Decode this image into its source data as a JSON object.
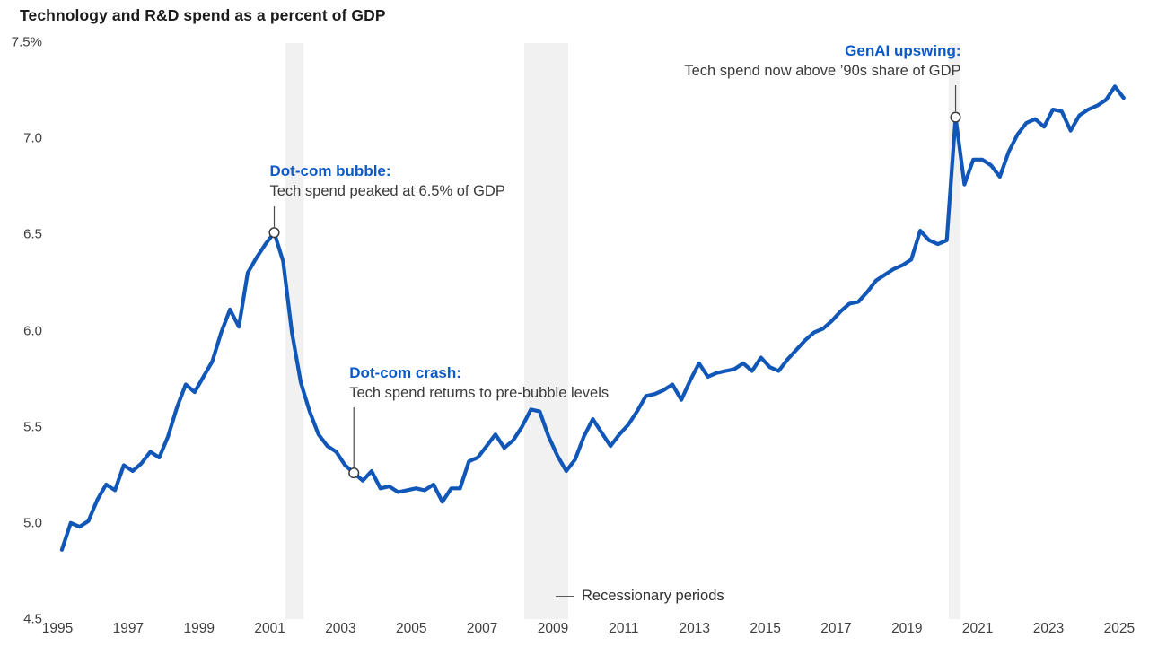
{
  "title": "Technology and R&D spend as a percent of GDP",
  "colors": {
    "line": "#1057b8",
    "annotation_title": "#0c59c8",
    "recession_band": "#f1f1f1",
    "marker_stroke": "#3a3a3a",
    "connector": "#4a4a4a"
  },
  "y_axis": {
    "tick_labels": [
      "7.5%",
      "7.0",
      "6.5",
      "6.0",
      "5.5",
      "5.0",
      "4.5"
    ],
    "tick_values": [
      7.5,
      7.0,
      6.5,
      6.0,
      5.5,
      5.0,
      4.5
    ]
  },
  "x_axis": {
    "tick_labels": [
      "1995",
      "1997",
      "1999",
      "2001",
      "2003",
      "2005",
      "2007",
      "2009",
      "2011",
      "2013",
      "2015",
      "2017",
      "2019",
      "2021",
      "2023",
      "2025"
    ],
    "tick_values": [
      1995,
      1997,
      1999,
      2001,
      2003,
      2005,
      2007,
      2009,
      2011,
      2013,
      2015,
      2017,
      2019,
      2021,
      2023,
      2025
    ]
  },
  "legend": {
    "label": "Recessionary periods"
  },
  "annotations": [
    {
      "id": "dotcom-bubble",
      "title": "Dot-com bubble:",
      "body": "Tech spend peaked at 6.5% of GDP",
      "series_index": 24,
      "year": 2001,
      "value": 6.51
    },
    {
      "id": "dotcom-crash",
      "title": "Dot-com crash:",
      "body": "Tech spend returns to pre-bubble levels",
      "series_index": 33,
      "year": 2003,
      "value": 5.26
    },
    {
      "id": "genai-upswing",
      "title": "GenAI upswing:",
      "body": "Tech spend now above ’90s share of GDP",
      "series_index": 101,
      "year": 2020,
      "value": 7.11
    }
  ],
  "chart_data": {
    "type": "line",
    "title": "Technology and R&D spend as a percent of GDP",
    "ylabel": "percent of GDP",
    "xlabel": "",
    "x_range": [
      1995,
      2025.4
    ],
    "y_range": [
      4.5,
      7.5
    ],
    "grid": false,
    "legend_position": "bottom-center",
    "recession_bands": [
      [
        2001.44,
        2001.95
      ],
      [
        2008.19,
        2009.43
      ],
      [
        2020.18,
        2020.51
      ]
    ],
    "series": [
      {
        "name": "Technology and R&D spend (% of GDP)",
        "frequency": "quarterly",
        "start_year": 1995,
        "values": [
          4.86,
          5.0,
          4.98,
          5.01,
          5.12,
          5.2,
          5.17,
          5.3,
          5.27,
          5.31,
          5.37,
          5.34,
          5.45,
          5.6,
          5.72,
          5.68,
          5.76,
          5.84,
          5.99,
          6.11,
          6.02,
          6.3,
          6.38,
          6.45,
          6.51,
          6.36,
          5.99,
          5.73,
          5.58,
          5.46,
          5.4,
          5.37,
          5.3,
          5.26,
          5.22,
          5.27,
          5.18,
          5.19,
          5.16,
          5.17,
          5.18,
          5.17,
          5.2,
          5.11,
          5.18,
          5.18,
          5.32,
          5.34,
          5.4,
          5.46,
          5.39,
          5.43,
          5.5,
          5.59,
          5.58,
          5.45,
          5.35,
          5.27,
          5.33,
          5.45,
          5.54,
          5.47,
          5.4,
          5.46,
          5.51,
          5.58,
          5.66,
          5.67,
          5.69,
          5.72,
          5.64,
          5.74,
          5.83,
          5.76,
          5.78,
          5.79,
          5.8,
          5.83,
          5.79,
          5.86,
          5.81,
          5.79,
          5.85,
          5.9,
          5.95,
          5.99,
          6.01,
          6.05,
          6.1,
          6.14,
          6.15,
          6.2,
          6.26,
          6.29,
          6.32,
          6.34,
          6.37,
          6.52,
          6.47,
          6.45,
          6.47,
          7.11,
          6.76,
          6.89,
          6.89,
          6.86,
          6.8,
          6.93,
          7.02,
          7.08,
          7.1,
          7.06,
          7.15,
          7.14,
          7.04,
          7.12,
          7.15,
          7.17,
          7.2,
          7.27,
          7.21
        ]
      }
    ]
  }
}
